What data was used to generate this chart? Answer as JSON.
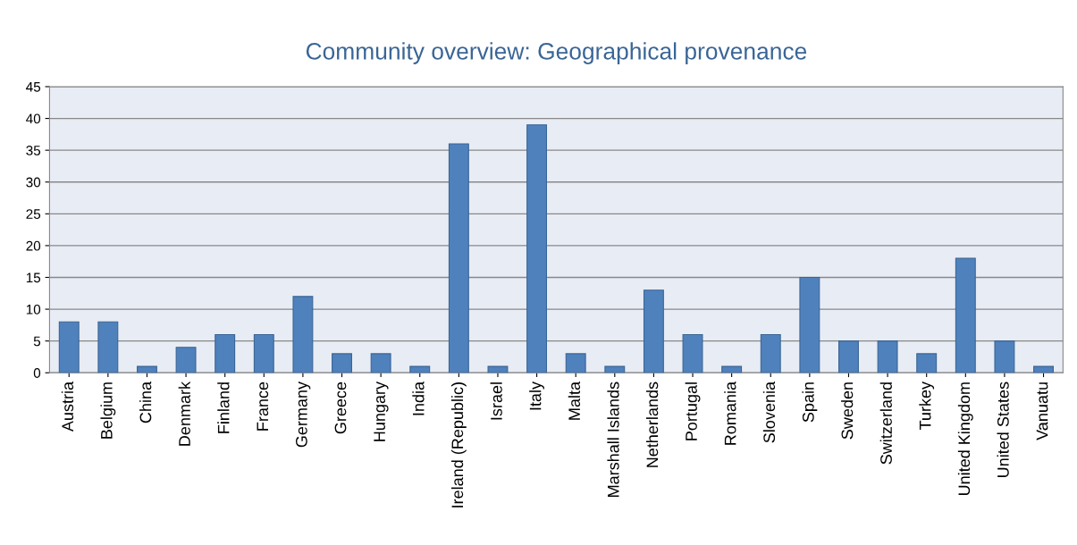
{
  "chart_data": {
    "type": "bar",
    "title": "Community overview: Geographical provenance",
    "categories": [
      "Austria",
      "Belgium",
      "China",
      "Denmark",
      "Finland",
      "France",
      "Germany",
      "Greece",
      "Hungary",
      "India",
      "Ireland (Republic)",
      "Israel",
      "Italy",
      "Malta",
      "Marshall Islands",
      "Netherlands",
      "Portugal",
      "Romania",
      "Slovenia",
      "Spain",
      "Sweden",
      "Switzerland",
      "Turkey",
      "United Kingdom",
      "United States",
      "Vanuatu"
    ],
    "values": [
      8,
      8,
      1,
      4,
      6,
      6,
      12,
      3,
      3,
      1,
      36,
      1,
      39,
      3,
      1,
      13,
      6,
      1,
      6,
      15,
      5,
      5,
      3,
      18,
      5,
      1
    ],
    "color": "#4f81bd",
    "ylim": [
      0,
      45
    ],
    "yticks": [
      0,
      5,
      10,
      15,
      20,
      25,
      30,
      35,
      40,
      45
    ],
    "grid": "y",
    "legend": false
  }
}
